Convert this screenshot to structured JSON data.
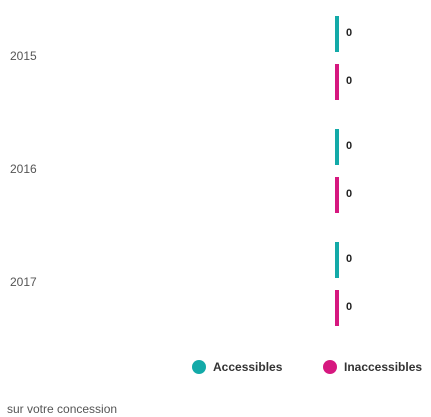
{
  "chart_data": {
    "type": "bar",
    "orientation": "horizontal",
    "categories": [
      "2015",
      "2016",
      "2017"
    ],
    "series": [
      {
        "name": "Accessibles",
        "color": "#13aaa8",
        "values": [
          0,
          0,
          0
        ]
      },
      {
        "name": "Inaccessibles",
        "color": "#d6187f",
        "values": [
          0,
          0,
          0
        ]
      }
    ],
    "footer": "sur votre concession"
  }
}
